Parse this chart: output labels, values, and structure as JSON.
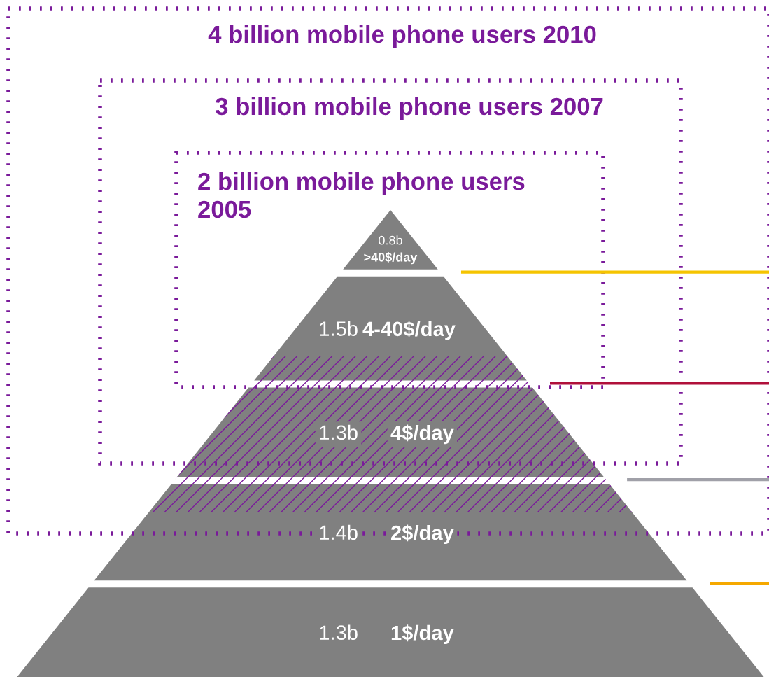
{
  "chart_data": {
    "type": "other",
    "categories": [
      ">40$/day",
      "4-40$/day",
      "4$/day",
      "2$/day",
      "1$/day"
    ],
    "values": [
      0.8,
      1.5,
      1.3,
      1.4,
      1.3
    ],
    "value_labels": [
      "0.8b",
      "1.5b",
      "1.3b",
      "1.4b",
      "1.3b"
    ],
    "annotations": [
      "4 billion mobile phone users 2010",
      "3 billion mobile phone users 2007",
      "2 billion mobile phone users\n2005"
    ]
  }
}
